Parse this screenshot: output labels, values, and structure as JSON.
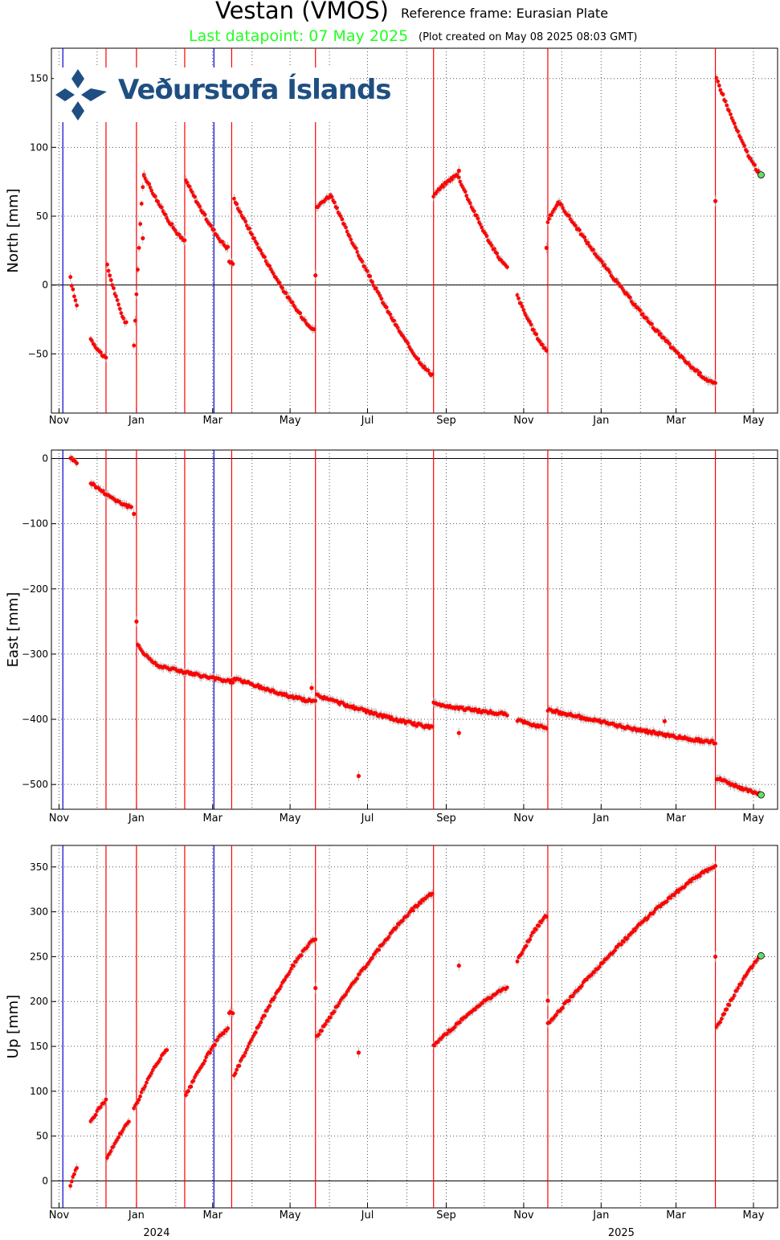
{
  "header": {
    "station": "Vestan (VMOS)",
    "reference": "Reference frame: Eurasian Plate",
    "last_datapoint": "Last datapoint: 07 May 2025",
    "created": "(Plot created on May 08 2025 08:03 GMT)"
  },
  "logo": {
    "text": "Veðurstofa Íslands"
  },
  "colors": {
    "data": "#ff0000",
    "event_line": "#ff0000",
    "maint_line": "#0000cc",
    "last_point": "#66dd66",
    "errorbar": "#aaaaaa"
  },
  "chart_data": [
    {
      "type": "scatter",
      "ylabel": "North [mm]",
      "xlim": [
        "2023-10-26",
        "2025-05-20"
      ],
      "ylim": [
        -93,
        172
      ],
      "yticks": [
        150,
        100,
        50,
        0,
        -50
      ],
      "ytick_labels": [
        "150",
        "100",
        "50",
        "0",
        "−50"
      ],
      "xtick_labels": [
        "Nov",
        "Jan",
        "Mar",
        "May",
        "Jul",
        "Sep",
        "Nov",
        "Jan",
        "Mar",
        "May"
      ],
      "segments": [
        {
          "x": [
            "2023-11-10",
            "2023-11-15"
          ],
          "y": [
            5,
            -14
          ]
        },
        {
          "x": [
            "2023-11-26",
            "2023-12-08"
          ],
          "y": [
            -39,
            -53
          ]
        },
        {
          "x": [
            "2023-12-09",
            "2023-12-24"
          ],
          "y": [
            14,
            -28
          ]
        },
        {
          "x": [
            "2023-12-30",
            "2024-01-07"
          ],
          "y": [
            -44,
            80
          ]
        },
        {
          "x": [
            "2024-01-07",
            "2024-02-08"
          ],
          "y": [
            80,
            32
          ]
        },
        {
          "x": [
            "2024-02-09",
            "2024-03-13"
          ],
          "y": [
            76,
            27
          ]
        },
        {
          "x": [
            "2024-03-14",
            "2024-03-17"
          ],
          "y": [
            17,
            16
          ]
        },
        {
          "x": [
            "2024-03-18",
            "2024-05-20"
          ],
          "y": [
            62,
            -32
          ]
        },
        {
          "x": [
            "2024-05-22",
            "2024-06-02"
          ],
          "y": [
            56,
            65
          ]
        },
        {
          "x": [
            "2024-06-02",
            "2024-08-21"
          ],
          "y": [
            65,
            -65
          ]
        },
        {
          "x": [
            "2024-08-22",
            "2024-09-10"
          ],
          "y": [
            65,
            80
          ]
        },
        {
          "x": [
            "2024-09-10",
            "2024-10-19"
          ],
          "y": [
            80,
            13
          ]
        },
        {
          "x": [
            "2024-10-27",
            "2024-11-19"
          ],
          "y": [
            -8,
            -47
          ]
        },
        {
          "x": [
            "2024-11-20",
            "2024-11-29"
          ],
          "y": [
            46,
            60
          ]
        },
        {
          "x": [
            "2024-11-29",
            "2025-04-01"
          ],
          "y": [
            60,
            -72
          ]
        },
        {
          "x": [
            "2025-04-02",
            "2025-05-07"
          ],
          "y": [
            150,
            80
          ]
        }
      ],
      "outliers": {
        "x": [
          "2024-01-06",
          "2024-05-21",
          "2024-09-11",
          "2024-11-19",
          "2025-04-01"
        ],
        "y": [
          34,
          7,
          83,
          27,
          61
        ]
      },
      "last_point": {
        "x": "2025-05-07",
        "y": 80
      }
    },
    {
      "type": "scatter",
      "ylabel": "East [mm]",
      "xlim": [
        "2023-10-26",
        "2025-05-20"
      ],
      "ylim": [
        -538,
        13
      ],
      "yticks": [
        0,
        -100,
        -200,
        -300,
        -400,
        -500
      ],
      "ytick_labels": [
        "0",
        "−100",
        "−200",
        "−300",
        "−400",
        "−500"
      ],
      "xtick_labels": [
        "Nov",
        "Jan",
        "Mar",
        "May",
        "Jul",
        "Sep",
        "Nov",
        "Jan",
        "Mar",
        "May"
      ],
      "segments": [
        {
          "x": [
            "2023-11-10",
            "2023-11-15"
          ],
          "y": [
            2,
            -6
          ]
        },
        {
          "x": [
            "2023-11-26",
            "2023-12-28"
          ],
          "y": [
            -37,
            -75
          ]
        },
        {
          "x": [
            "2024-01-02",
            "2024-01-20"
          ],
          "y": [
            -287,
            -320
          ]
        },
        {
          "x": [
            "2024-01-20",
            "2024-03-17"
          ],
          "y": [
            -318,
            -342
          ]
        },
        {
          "x": [
            "2024-03-18",
            "2024-05-21"
          ],
          "y": [
            -337,
            -373
          ]
        },
        {
          "x": [
            "2024-05-22",
            "2024-08-21"
          ],
          "y": [
            -363,
            -412
          ]
        },
        {
          "x": [
            "2024-08-22",
            "2024-10-19"
          ],
          "y": [
            -376,
            -392
          ]
        },
        {
          "x": [
            "2024-10-27",
            "2024-11-19"
          ],
          "y": [
            -402,
            -412
          ]
        },
        {
          "x": [
            "2024-11-20",
            "2025-04-01"
          ],
          "y": [
            -385,
            -435
          ]
        },
        {
          "x": [
            "2025-04-02",
            "2025-05-07"
          ],
          "y": [
            -490,
            -515
          ]
        }
      ],
      "outliers": {
        "x": [
          "2023-12-30",
          "2024-01-01",
          "2024-05-18",
          "2024-06-24",
          "2024-09-11",
          "2025-02-20"
        ],
        "y": [
          -85,
          -250,
          -352,
          -487,
          -421,
          -403
        ]
      },
      "last_point": {
        "x": "2025-05-07",
        "y": -516
      }
    },
    {
      "type": "scatter",
      "ylabel": "Up [mm]",
      "xlim": [
        "2023-10-26",
        "2025-05-20"
      ],
      "ylim": [
        -30,
        374
      ],
      "yticks": [
        350,
        300,
        250,
        200,
        150,
        100,
        50,
        0
      ],
      "ytick_labels": [
        "350",
        "300",
        "250",
        "200",
        "150",
        "100",
        "50",
        "0"
      ],
      "xtick_labels": [
        "Nov",
        "Jan",
        "Mar",
        "May",
        "Jul",
        "Sep",
        "Nov",
        "Jan",
        "Mar",
        "May"
      ],
      "year_labels": [
        "2024",
        "2025"
      ],
      "segments": [
        {
          "x": [
            "2023-11-10",
            "2023-11-15"
          ],
          "y": [
            -5,
            15
          ]
        },
        {
          "x": [
            "2023-11-26",
            "2023-12-08"
          ],
          "y": [
            65,
            90
          ]
        },
        {
          "x": [
            "2023-12-09",
            "2023-12-26"
          ],
          "y": [
            25,
            65
          ]
        },
        {
          "x": [
            "2023-12-30",
            "2024-01-25"
          ],
          "y": [
            80,
            145
          ]
        },
        {
          "x": [
            "2024-02-09",
            "2024-03-13"
          ],
          "y": [
            95,
            170
          ]
        },
        {
          "x": [
            "2024-03-14",
            "2024-03-17"
          ],
          "y": [
            188,
            186
          ]
        },
        {
          "x": [
            "2024-03-18",
            "2024-05-21"
          ],
          "y": [
            118,
            270
          ]
        },
        {
          "x": [
            "2024-05-22",
            "2024-08-21"
          ],
          "y": [
            160,
            320
          ]
        },
        {
          "x": [
            "2024-08-22",
            "2024-10-19"
          ],
          "y": [
            150,
            215
          ]
        },
        {
          "x": [
            "2024-10-27",
            "2024-11-19"
          ],
          "y": [
            245,
            295
          ]
        },
        {
          "x": [
            "2024-11-20",
            "2025-04-01"
          ],
          "y": [
            175,
            350
          ]
        },
        {
          "x": [
            "2025-04-02",
            "2025-05-07"
          ],
          "y": [
            170,
            250
          ]
        }
      ],
      "outliers": {
        "x": [
          "2024-05-21",
          "2024-06-24",
          "2024-09-11",
          "2024-11-20",
          "2025-04-01"
        ],
        "y": [
          215,
          143,
          240,
          201,
          250
        ]
      },
      "last_point": {
        "x": "2025-05-07",
        "y": 251
      }
    }
  ],
  "event_lines": [
    "2023-12-08",
    "2024-01-01",
    "2024-02-08",
    "2024-03-16",
    "2024-05-21",
    "2024-08-22",
    "2024-11-20",
    "2025-04-01"
  ],
  "maintenance_lines": [
    "2023-11-04",
    "2024-03-02"
  ]
}
